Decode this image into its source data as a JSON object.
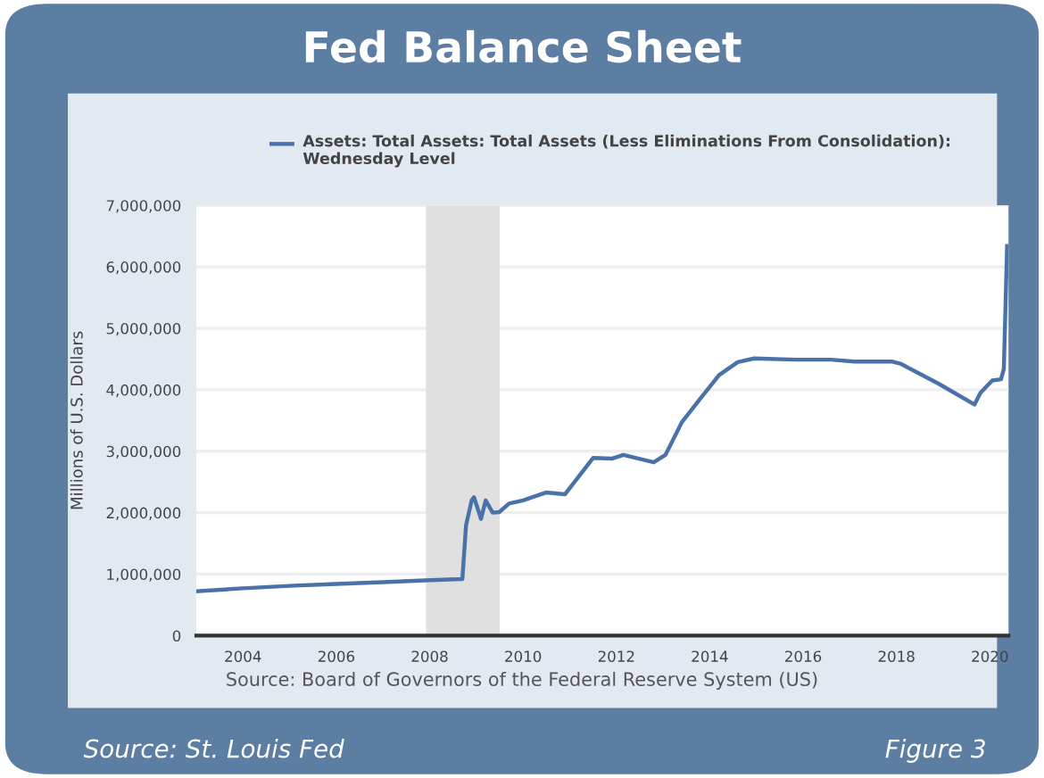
{
  "chart_data": {
    "type": "line",
    "title": "Fed Balance Sheet",
    "ylabel": "Millions of U.S. Dollars",
    "x": [
      2003.0,
      2004.0,
      2005.0,
      2006.0,
      2007.0,
      2007.9,
      2008.7,
      2008.78,
      2008.9,
      2008.95,
      2009.1,
      2009.2,
      2009.35,
      2009.49,
      2009.7,
      2010.0,
      2010.5,
      2010.9,
      2011.5,
      2011.9,
      2012.15,
      2012.8,
      2013.05,
      2013.4,
      2013.8,
      2014.2,
      2014.6,
      2014.95,
      2015.85,
      2016.6,
      2017.1,
      2017.9,
      2018.1,
      2018.9,
      2019.67,
      2019.8,
      2020.05,
      2020.24,
      2020.3,
      2020.37
    ],
    "series": [
      {
        "name": "Assets: Total Assets: Total Assets (Less Eliminations From Consolidation): Wednesday Level",
        "color": "#4a72a8",
        "values": [
          720000,
          770000,
          810000,
          840000,
          870000,
          900000,
          920000,
          1800000,
          2200000,
          2250000,
          1900000,
          2200000,
          2000000,
          2010000,
          2150000,
          2200000,
          2330000,
          2300000,
          2890000,
          2880000,
          2940000,
          2820000,
          2940000,
          3470000,
          3860000,
          4240000,
          4450000,
          4510000,
          4490000,
          4490000,
          4460000,
          4460000,
          4420000,
          4100000,
          3760000,
          3950000,
          4150000,
          4170000,
          4340000,
          6340000
        ]
      }
    ],
    "xlim": [
      2003.0,
      2020.4
    ],
    "xticks": [
      2004,
      2006,
      2008,
      2010,
      2012,
      2014,
      2016,
      2018,
      2020
    ],
    "ylim": [
      0,
      7000000
    ],
    "yticks": [
      0,
      {
        "value": 1000000,
        "label": "1,000,000"
      },
      {
        "value": 2000000,
        "label": "2,000,000"
      },
      {
        "value": 3000000,
        "label": "3,000,000"
      },
      {
        "value": 4000000,
        "label": "4,000,000"
      },
      {
        "value": 5000000,
        "label": "5,000,000"
      },
      {
        "value": 6000000,
        "label": "6,000,000"
      },
      {
        "value": 7000000,
        "label": "7,000,000"
      }
    ],
    "bands": [
      {
        "axis": "x",
        "from": 2007.92,
        "to": 2009.5,
        "color": "#e0e0e0"
      }
    ],
    "grid": "y",
    "legend": "top left",
    "annotations": [
      "Source: Board of Governors of the Federal Reserve System (US)",
      "Source: St. Louis Fed",
      "Figure 3"
    ]
  }
}
